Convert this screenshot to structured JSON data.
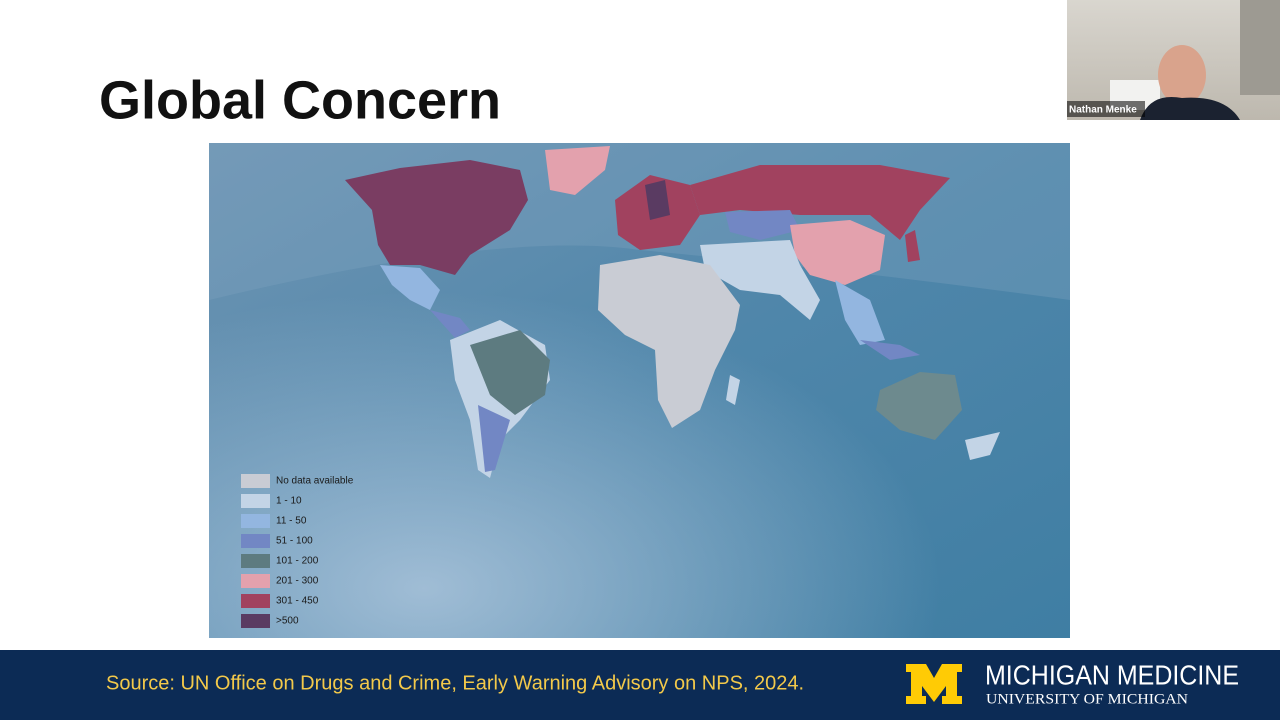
{
  "slide": {
    "title": "Global Concern",
    "legend": [
      {
        "label": "No data available",
        "color": "#c9ccd4"
      },
      {
        "label": "1 - 10",
        "color": "#c3d4e6"
      },
      {
        "label": "11 - 50",
        "color": "#93b6e0"
      },
      {
        "label": "51 - 100",
        "color": "#7287c4"
      },
      {
        "label": "101 - 200",
        "color": "#5d7b80"
      },
      {
        "label": "201 - 300",
        "color": "#e3a1ad"
      },
      {
        "label": "301 - 450",
        "color": "#a1425f"
      },
      {
        "label": ">500",
        "color": "#5a3b62"
      }
    ],
    "source": "Source: UN Office on Drugs and Crime, Early Warning Advisory on NPS, 2024.",
    "brand": {
      "name": "MICHIGAN MEDICINE",
      "subtitle": "UNIVERSITY OF MICHIGAN"
    },
    "video": {
      "participant": "Nathan Menke"
    }
  }
}
